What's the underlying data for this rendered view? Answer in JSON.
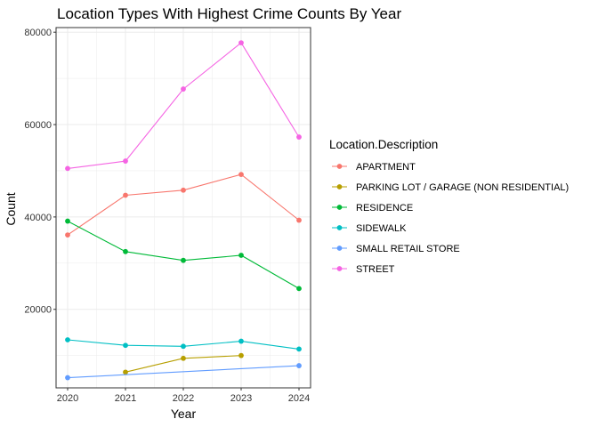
{
  "chart_data": {
    "type": "line",
    "title": "Location Types With Highest Crime Counts By Year",
    "xlabel": "Year",
    "ylabel": "Count",
    "legend_title": "Location.Description",
    "legend_position": "right",
    "grid": true,
    "x": [
      2020,
      2021,
      2022,
      2023,
      2024
    ],
    "x_ticks": [
      "2020",
      "2021",
      "2022",
      "2023",
      "2024"
    ],
    "ylim": [
      3000,
      81000
    ],
    "y_ticks": [
      20000,
      40000,
      60000,
      80000
    ],
    "y_tick_labels": [
      "20000",
      "40000",
      "60000",
      "80000"
    ],
    "series": [
      {
        "name": "APARTMENT",
        "color": "#F8766D",
        "values": [
          36100,
          44700,
          45800,
          49200,
          39300
        ]
      },
      {
        "name": "PARKING LOT / GARAGE (NON RESIDENTIAL)",
        "color": "#B79F00",
        "values": [
          null,
          6400,
          9400,
          10000,
          null
        ]
      },
      {
        "name": "RESIDENCE",
        "color": "#00BA38",
        "values": [
          39100,
          32500,
          30600,
          31700,
          24500
        ]
      },
      {
        "name": "SIDEWALK",
        "color": "#00BFC4",
        "values": [
          13400,
          12200,
          12000,
          13100,
          11400
        ]
      },
      {
        "name": "SMALL RETAIL STORE",
        "color": "#619CFF",
        "values": [
          5200,
          null,
          null,
          null,
          7800
        ]
      },
      {
        "name": "STREET",
        "color": "#F564E3",
        "values": [
          50500,
          52100,
          67700,
          77700,
          57300
        ]
      }
    ]
  }
}
